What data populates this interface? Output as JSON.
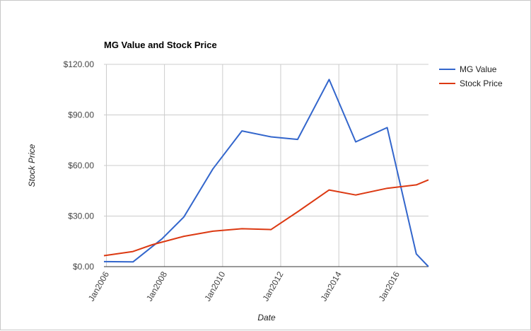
{
  "chart_data": {
    "type": "line",
    "title": "MG Value and Stock Price",
    "xlabel": "Date",
    "ylabel": "Stock Price",
    "x_range": [
      "2005-12-01",
      "2017-02-01"
    ],
    "x_ticks": [
      {
        "label": "Jan2006",
        "date": "2006-01-01"
      },
      {
        "label": "Jan2008",
        "date": "2008-01-01"
      },
      {
        "label": "Jan2010",
        "date": "2010-01-01"
      },
      {
        "label": "Jan2012",
        "date": "2012-01-01"
      },
      {
        "label": "Jan2014",
        "date": "2014-01-01"
      },
      {
        "label": "Jan2016",
        "date": "2016-01-01"
      }
    ],
    "ylim": [
      0,
      120
    ],
    "y_ticks": [
      {
        "label": "$0.00",
        "value": 0
      },
      {
        "label": "$30.00",
        "value": 30
      },
      {
        "label": "$60.00",
        "value": 60
      },
      {
        "label": "$90.00",
        "value": 90
      },
      {
        "label": "$120.00",
        "value": 120
      }
    ],
    "grid": true,
    "legend_position": "right",
    "series": [
      {
        "name": "MG Value",
        "color": "#3366cc",
        "points": [
          {
            "x": "2005-12-01",
            "y": 3.0
          },
          {
            "x": "2006-12-01",
            "y": 2.8
          },
          {
            "x": "2007-12-01",
            "y": 16.5
          },
          {
            "x": "2008-09-01",
            "y": 29.5
          },
          {
            "x": "2009-09-01",
            "y": 58.0
          },
          {
            "x": "2010-09-01",
            "y": 80.5
          },
          {
            "x": "2011-09-01",
            "y": 77.0
          },
          {
            "x": "2012-08-01",
            "y": 75.5
          },
          {
            "x": "2013-09-01",
            "y": 111.0
          },
          {
            "x": "2014-08-01",
            "y": 74.0
          },
          {
            "x": "2015-09-01",
            "y": 82.5
          },
          {
            "x": "2016-09-01",
            "y": 7.5
          },
          {
            "x": "2017-02-01",
            "y": 0.0
          }
        ]
      },
      {
        "name": "Stock Price",
        "color": "#dc3912",
        "points": [
          {
            "x": "2005-12-01",
            "y": 6.5
          },
          {
            "x": "2006-12-01",
            "y": 9.0
          },
          {
            "x": "2007-08-01",
            "y": 13.0
          },
          {
            "x": "2008-09-01",
            "y": 18.0
          },
          {
            "x": "2009-09-01",
            "y": 21.0
          },
          {
            "x": "2010-09-01",
            "y": 22.5
          },
          {
            "x": "2011-09-01",
            "y": 22.0
          },
          {
            "x": "2012-08-01",
            "y": 32.5
          },
          {
            "x": "2013-09-01",
            "y": 45.5
          },
          {
            "x": "2014-08-01",
            "y": 42.5
          },
          {
            "x": "2015-09-01",
            "y": 46.5
          },
          {
            "x": "2016-09-01",
            "y": 48.5
          },
          {
            "x": "2017-02-01",
            "y": 51.5
          }
        ]
      }
    ]
  }
}
